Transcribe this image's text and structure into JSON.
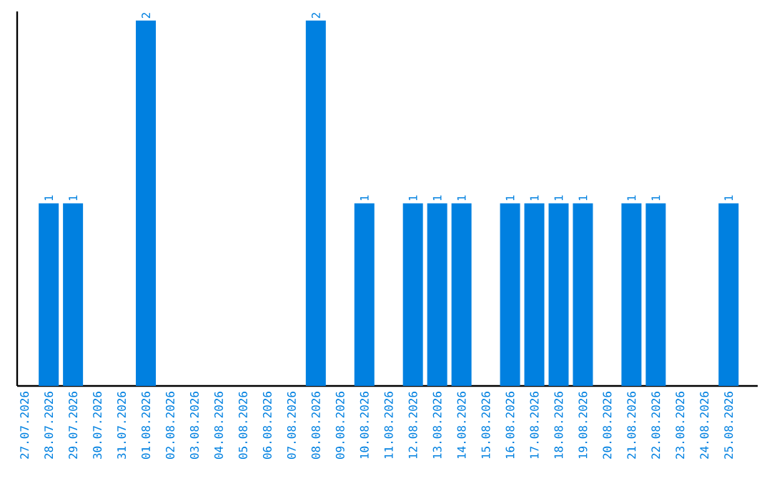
{
  "chart_data": {
    "type": "bar",
    "categories": [
      "27.07.2026",
      "28.07.2026",
      "29.07.2026",
      "30.07.2026",
      "31.07.2026",
      "01.08.2026",
      "02.08.2026",
      "03.08.2026",
      "04.08.2026",
      "05.08.2026",
      "06.08.2026",
      "07.08.2026",
      "08.08.2026",
      "09.08.2026",
      "10.08.2026",
      "11.08.2026",
      "12.08.2026",
      "13.08.2026",
      "14.08.2026",
      "15.08.2026",
      "16.08.2026",
      "17.08.2026",
      "18.08.2026",
      "19.08.2026",
      "20.08.2026",
      "21.08.2026",
      "22.08.2026",
      "23.08.2026",
      "24.08.2026",
      "25.08.2026"
    ],
    "values": [
      0,
      1,
      1,
      0,
      0,
      2,
      0,
      0,
      0,
      0,
      0,
      0,
      2,
      0,
      1,
      0,
      1,
      1,
      1,
      0,
      1,
      1,
      1,
      1,
      0,
      1,
      1,
      0,
      0,
      1
    ],
    "value_labels": [
      null,
      "1",
      "1",
      null,
      null,
      "2",
      null,
      null,
      null,
      null,
      null,
      null,
      "2",
      null,
      "1",
      null,
      "1",
      "1",
      "1",
      null,
      "1",
      "1",
      "1",
      "1",
      null,
      "1",
      "1",
      null,
      null,
      "1"
    ],
    "color": "#0080e0",
    "ylim": [
      0,
      2.05
    ],
    "tick_labels": "x"
  }
}
